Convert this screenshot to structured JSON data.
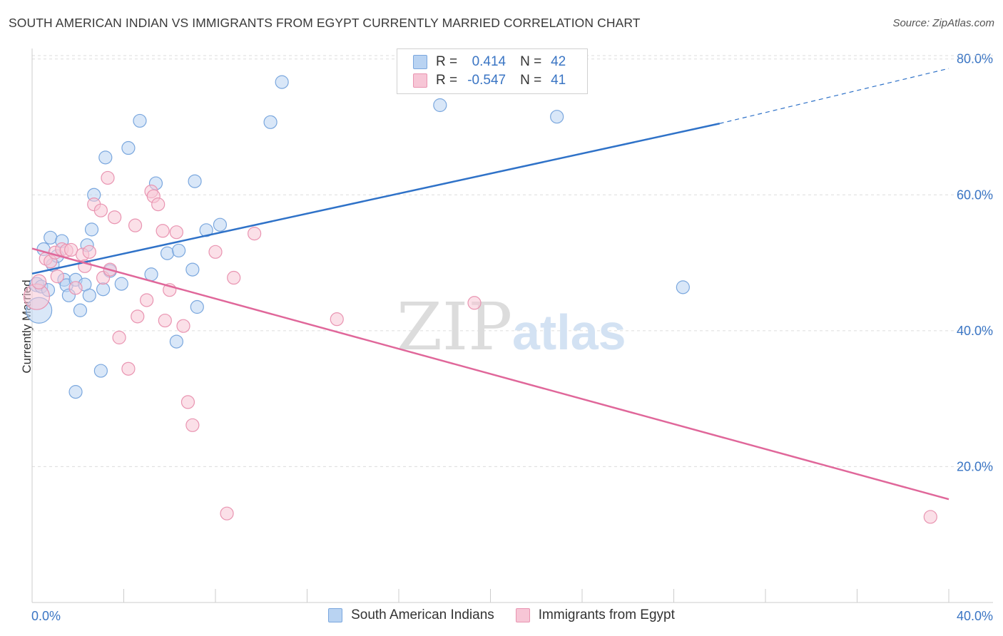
{
  "title": "SOUTH AMERICAN INDIAN VS IMMIGRANTS FROM EGYPT CURRENTLY MARRIED CORRELATION CHART",
  "source": "Source: ZipAtlas.com",
  "watermark": {
    "zip": "ZIP",
    "atlas": "atlas"
  },
  "legend": {
    "rows": [
      {
        "r_label": "R =",
        "r_value": "0.414",
        "n_label": "N =",
        "n_value": "42"
      },
      {
        "r_label": "R =",
        "r_value": "-0.547",
        "n_label": "N =",
        "n_value": "41"
      }
    ]
  },
  "colors": {
    "blue_fill": "#b9d3f2",
    "blue_stroke": "#7aa7de",
    "blue_line": "#2f72c8",
    "pink_fill": "#f7c6d6",
    "pink_stroke": "#e994b1",
    "pink_line": "#e0679a",
    "axis_text": "#3a75c4",
    "grid": "#dddddd"
  },
  "chart_data": {
    "type": "scatter",
    "title": "SOUTH AMERICAN INDIAN VS IMMIGRANTS FROM EGYPT CURRENTLY MARRIED CORRELATION CHART",
    "xlabel": "",
    "ylabel": "Currently Married",
    "xlim": [
      0,
      40
    ],
    "ylim": [
      0,
      82
    ],
    "x_tick_labels": [
      "0.0%",
      "40.0%"
    ],
    "y_ticks": [
      20,
      40,
      60,
      80
    ],
    "y_tick_labels": [
      "20.0%",
      "40.0%",
      "60.0%",
      "80.0%"
    ],
    "grid": true,
    "legend_position": "top-center",
    "series": [
      {
        "name": "South American Indians",
        "color": "#b9d3f2",
        "trend": {
          "x": [
            0,
            30
          ],
          "y": [
            48.4,
            70.5
          ],
          "dashed_to": [
            40,
            78.6
          ]
        },
        "points": [
          [
            0.3,
            43.0,
            18
          ],
          [
            0.2,
            46.8,
            10
          ],
          [
            0.4,
            46.5,
            9
          ],
          [
            0.7,
            46.0,
            9
          ],
          [
            0.5,
            52.0,
            9
          ],
          [
            0.8,
            53.7,
            9
          ],
          [
            0.9,
            49.7,
            9
          ],
          [
            1.1,
            51.0,
            9
          ],
          [
            1.3,
            53.2,
            9
          ],
          [
            1.4,
            47.5,
            9
          ],
          [
            1.5,
            46.7,
            9
          ],
          [
            1.6,
            45.2,
            9
          ],
          [
            1.9,
            47.5,
            9
          ],
          [
            2.1,
            43.0,
            9
          ],
          [
            2.3,
            46.8,
            9
          ],
          [
            2.5,
            45.2,
            9
          ],
          [
            2.6,
            54.9,
            9
          ],
          [
            2.7,
            60.0,
            9
          ],
          [
            2.4,
            52.6,
            9
          ],
          [
            3.1,
            46.1,
            9
          ],
          [
            3.2,
            65.5,
            9
          ],
          [
            3.4,
            48.8,
            9
          ],
          [
            3.9,
            46.9,
            9
          ],
          [
            4.2,
            66.9,
            9
          ],
          [
            4.7,
            70.9,
            9
          ],
          [
            5.2,
            48.3,
            9
          ],
          [
            5.4,
            61.7,
            9
          ],
          [
            5.9,
            51.4,
            9
          ],
          [
            6.4,
            51.8,
            9
          ],
          [
            6.3,
            38.4,
            9
          ],
          [
            7.0,
            49.0,
            9
          ],
          [
            7.2,
            43.5,
            9
          ],
          [
            7.1,
            62.0,
            9
          ],
          [
            7.6,
            54.8,
            9
          ],
          [
            8.2,
            55.6,
            9
          ],
          [
            10.4,
            70.7,
            9
          ],
          [
            10.9,
            76.6,
            9
          ],
          [
            17.8,
            73.2,
            9
          ],
          [
            22.9,
            71.5,
            9
          ],
          [
            28.4,
            46.4,
            9
          ],
          [
            3.0,
            34.1,
            9
          ],
          [
            1.9,
            31.0,
            9
          ]
        ]
      },
      {
        "name": "Immigrants from Egypt",
        "color": "#f7c6d6",
        "trend": {
          "x": [
            0,
            40
          ],
          "y": [
            52.1,
            15.2
          ]
        },
        "points": [
          [
            0.2,
            45.0,
            18
          ],
          [
            0.3,
            47.2,
            10
          ],
          [
            0.6,
            50.6,
            9
          ],
          [
            0.8,
            50.2,
            9
          ],
          [
            1.0,
            51.5,
            9
          ],
          [
            1.1,
            48.0,
            9
          ],
          [
            1.3,
            52.0,
            9
          ],
          [
            1.5,
            51.8,
            9
          ],
          [
            1.7,
            51.9,
            9
          ],
          [
            1.9,
            46.3,
            9
          ],
          [
            2.2,
            51.2,
            9
          ],
          [
            2.3,
            49.5,
            9
          ],
          [
            2.5,
            51.6,
            9
          ],
          [
            2.7,
            58.6,
            9
          ],
          [
            3.0,
            57.7,
            9
          ],
          [
            3.1,
            47.8,
            9
          ],
          [
            3.3,
            62.5,
            9
          ],
          [
            3.4,
            49.0,
            9
          ],
          [
            3.6,
            56.7,
            9
          ],
          [
            3.8,
            39.0,
            9
          ],
          [
            4.2,
            34.4,
            9
          ],
          [
            4.5,
            55.5,
            9
          ],
          [
            4.6,
            42.1,
            9
          ],
          [
            5.0,
            44.5,
            9
          ],
          [
            5.2,
            60.5,
            9
          ],
          [
            5.3,
            59.8,
            9
          ],
          [
            5.5,
            58.6,
            9
          ],
          [
            5.7,
            54.7,
            9
          ],
          [
            5.8,
            41.5,
            9
          ],
          [
            6.0,
            46.0,
            9
          ],
          [
            6.3,
            54.5,
            9
          ],
          [
            6.6,
            40.7,
            9
          ],
          [
            6.8,
            29.5,
            9
          ],
          [
            7.0,
            26.1,
            9
          ],
          [
            8.0,
            51.6,
            9
          ],
          [
            8.8,
            47.8,
            9
          ],
          [
            9.7,
            54.3,
            9
          ],
          [
            13.3,
            41.7,
            9
          ],
          [
            19.3,
            44.1,
            9
          ],
          [
            8.5,
            13.1,
            9
          ],
          [
            39.2,
            12.6,
            9
          ]
        ]
      }
    ]
  }
}
